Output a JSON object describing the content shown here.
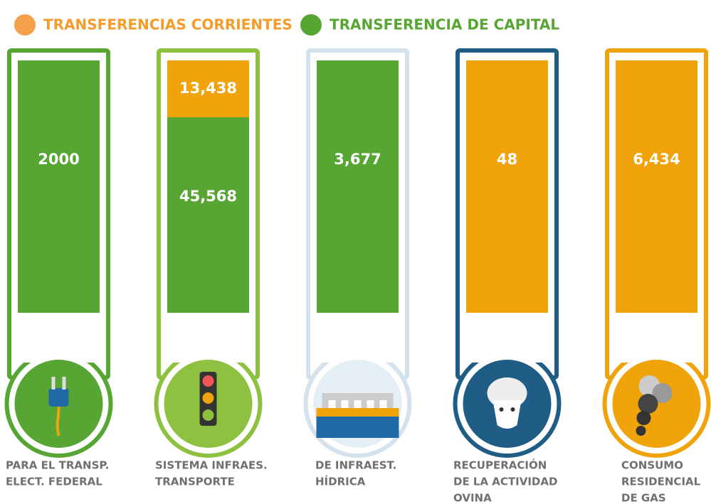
{
  "legend": [
    {
      "label": "TRANSFERENCIAS CORRIENTES",
      "color": "#f39c2b"
    },
    {
      "label": "TRANSFERENCIA DE CAPITAL",
      "color": "#57a634"
    }
  ],
  "columns": [
    {
      "frame": "#57a634",
      "label": [
        "PARA EL TRANSP.",
        "ELECT. FEDERAL"
      ],
      "segments": [
        {
          "text": "2000",
          "color": "#57a634"
        }
      ]
    },
    {
      "frame": "#8dc13f",
      "label": [
        "SISTEMA INFRAES.",
        "TRANSPORTE"
      ],
      "segments": [
        {
          "text": "13,438",
          "color": "#f0a30a"
        },
        {
          "text": "45,568",
          "color": "#57a634"
        }
      ]
    },
    {
      "frame": "#d3e2ec",
      "label": [
        "DE INFRAEST.",
        "HÍDRICA"
      ],
      "segments": [
        {
          "text": "3,677",
          "color": "#57a634"
        }
      ]
    },
    {
      "frame": "#1f5d86",
      "label": [
        "RECUPERACIÓN",
        "DE LA ACTIVIDAD",
        "OVINA"
      ],
      "segments": [
        {
          "text": "48",
          "color": "#f0a30a"
        }
      ]
    },
    {
      "frame": "#f0a30a",
      "label": [
        "CONSUMO",
        "RESIDENCIAL",
        "DE GAS"
      ],
      "segments": [
        {
          "text": "6,434",
          "color": "#f0a30a"
        }
      ]
    }
  ]
}
